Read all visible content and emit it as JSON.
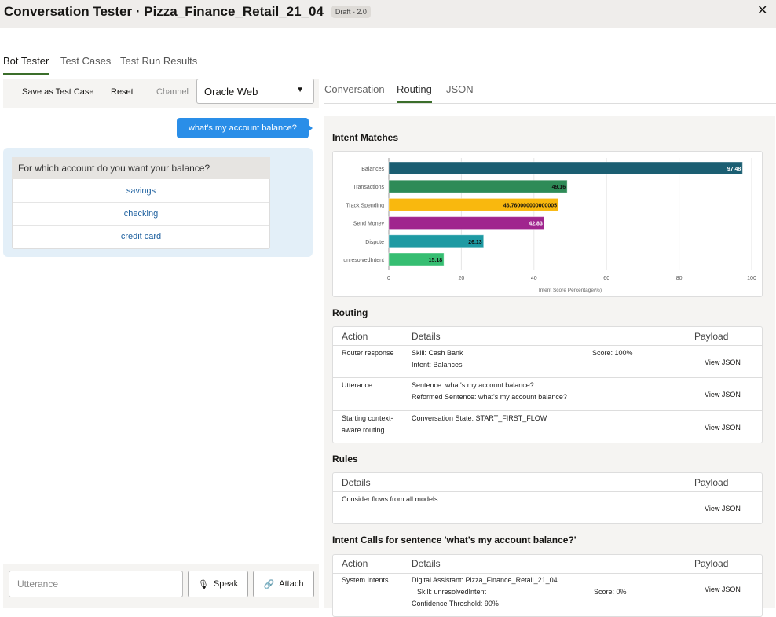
{
  "header": {
    "title": "Conversation Tester · Pizza_Finance_Retail_21_04",
    "badge": "Draft - 2.0",
    "close": "✕"
  },
  "tabs": [
    "Bot Tester",
    "Test Cases",
    "Test Run Results"
  ],
  "toolbar": {
    "save": "Save as Test Case",
    "reset": "Reset",
    "channel_label": "Channel",
    "channel_value": "Oracle Web"
  },
  "chat": {
    "user_message": "what's my account balance?",
    "bot_question": "For which account do you want your balance?",
    "options": [
      "savings",
      "checking",
      "credit card"
    ]
  },
  "input": {
    "placeholder": "Utterance",
    "speak": "Speak",
    "attach": "Attach"
  },
  "right_tabs": [
    "Conversation",
    "Routing",
    "JSON"
  ],
  "sections": {
    "intent_matches": "Intent Matches",
    "routing": "Routing",
    "rules": "Rules",
    "intent_calls": "Intent Calls for sentence 'what's my account balance?'"
  },
  "chart_data": {
    "type": "bar",
    "orientation": "horizontal",
    "categories": [
      "Balances",
      "Transactions",
      "Track Spending",
      "Send Money",
      "Dispute",
      "unresolvedIntent"
    ],
    "values": [
      97.48,
      49.16,
      46.76,
      42.83,
      26.13,
      15.18
    ],
    "labels": [
      "97.48",
      "49.16",
      "46.760000000000005",
      "42.83",
      "26.13",
      "15.18"
    ],
    "colors": [
      "#1b5e72",
      "#2e8b57",
      "#f9b80e",
      "#a0258e",
      "#1e9aa3",
      "#36be72"
    ],
    "xlabel": "Intent Score Percentage(%)",
    "xlim": [
      0,
      100
    ],
    "xticks": [
      "0",
      "20",
      "40",
      "60",
      "80",
      "100"
    ],
    "grid": true
  },
  "routing": {
    "headers": [
      "Action",
      "Details",
      "Payload"
    ],
    "rows": [
      {
        "action": "Router response",
        "details": [
          "Skill: Cash Bank",
          "Intent: Balances"
        ],
        "score": "Score: 100%",
        "payload": "View JSON"
      },
      {
        "action": "Utterance",
        "details": [
          "Sentence: what's my account balance?",
          "Reformed Sentence: what's my account balance?"
        ],
        "score": "",
        "payload": "View JSON"
      },
      {
        "action": "Starting context-aware routing.",
        "details": [
          "Conversation State: START_FIRST_FLOW"
        ],
        "score": "",
        "payload": "View JSON"
      }
    ]
  },
  "rules": {
    "headers": [
      "Details",
      "Payload"
    ],
    "rows": [
      {
        "details": "Consider flows from all models.",
        "payload": "View JSON"
      }
    ]
  },
  "intent_calls": {
    "headers": [
      "Action",
      "Details",
      "Payload"
    ],
    "rows": [
      {
        "action": "System Intents",
        "details": [
          "Digital Assistant: Pizza_Finance_Retail_21_04",
          "Skill: unresolvedIntent",
          "Confidence Threshold: 90%"
        ],
        "score": "Score: 0%",
        "payload": "View JSON"
      }
    ]
  }
}
